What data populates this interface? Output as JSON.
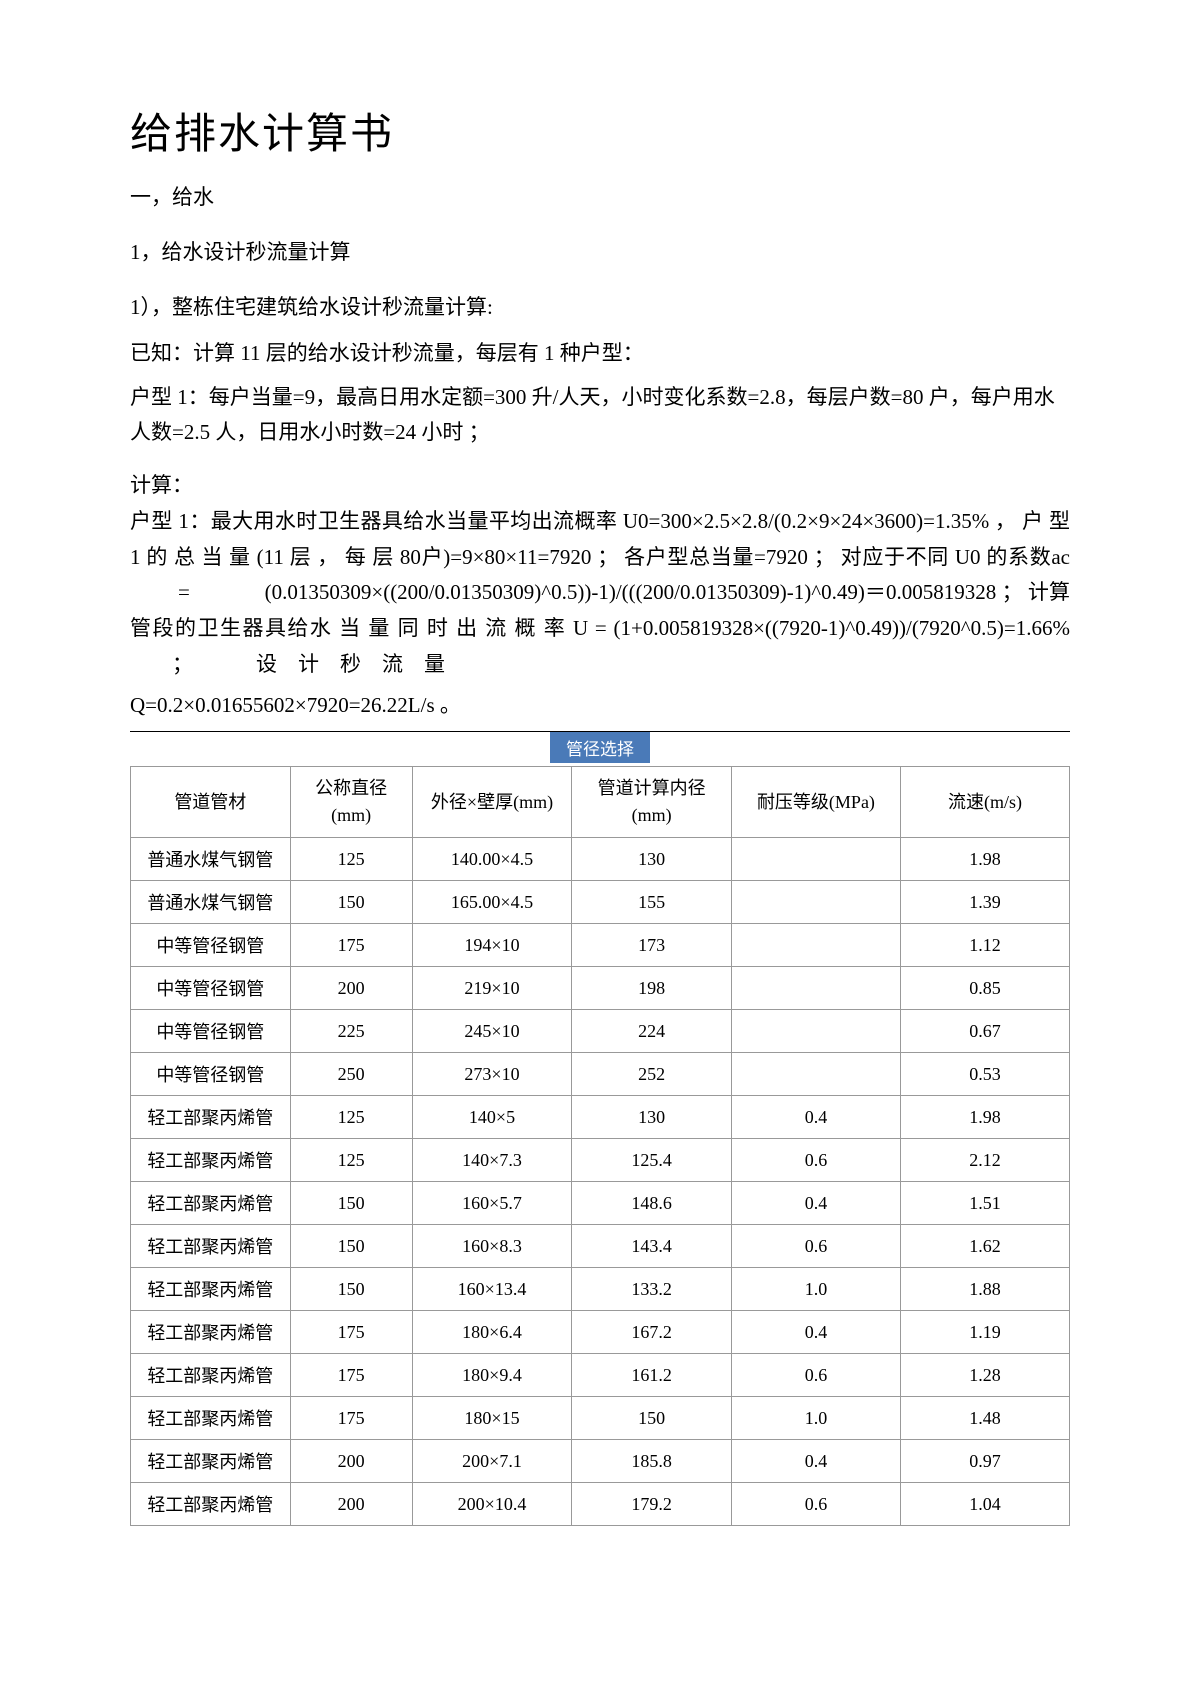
{
  "title": "给排水计算书",
  "section1": {
    "heading": "一，给水",
    "sub1": {
      "heading": "1，给水设计秒流量计算",
      "item1": {
        "heading": "1），整栋住宅建筑给水设计秒流量计算:",
        "known_line1": "已知：计算 11 层的给水设计秒流量，每层有 1 种户型：",
        "known_line2": "户型 1：每户当量=9，最高日用水定额=300 升/人天，小时变化系数=2.8，每层户数=80 户，每户用水人数=2.5 人，日用水小时数=24 小时 ；",
        "calc_label": "计算：",
        "calc_body": "户型 1：最大用水时卫生器具给水当量平均出流概率 U0=300×2.5×2.8/(0.2×9×24×3600)=1.35% ， 户 型 1 的 总 当 量 (11 层 ， 每 层 80户)=9×80×11=7920 ； 各户型总当量=7920 ； 对应于不同 U0 的系数ac          =              (0.01350309×((200/0.01350309)^0.5))-1)/(((200/0.01350309)-1)^0.49)＝0.005819328 ； 计算管段的卫生器具给水 当 量 同 时 出 流 概 率 U = (1+0.005819328×((7920-1)^0.49))/(7920^0.5)=1.66%         ；            设    计    秒    流    量",
        "calc_last": "Q=0.2×0.01655602×7920=26.22L/s 。"
      }
    }
  },
  "table": {
    "caption": "管径选择",
    "headers": {
      "material": "管道管材",
      "dn": "公称直径(mm)",
      "od": "外径×壁厚(mm)",
      "id": "管道计算内径(mm)",
      "pressure": "耐压等级(MPa)",
      "velocity": "流速(m/s)"
    },
    "rows": [
      {
        "material": "普通水煤气钢管",
        "dn": "125",
        "od": "140.00×4.5",
        "id": "130",
        "pressure": "",
        "velocity": "1.98"
      },
      {
        "material": "普通水煤气钢管",
        "dn": "150",
        "od": "165.00×4.5",
        "id": "155",
        "pressure": "",
        "velocity": "1.39"
      },
      {
        "material": "中等管径钢管",
        "dn": "175",
        "od": "194×10",
        "id": "173",
        "pressure": "",
        "velocity": "1.12"
      },
      {
        "material": "中等管径钢管",
        "dn": "200",
        "od": "219×10",
        "id": "198",
        "pressure": "",
        "velocity": "0.85"
      },
      {
        "material": "中等管径钢管",
        "dn": "225",
        "od": "245×10",
        "id": "224",
        "pressure": "",
        "velocity": "0.67"
      },
      {
        "material": "中等管径钢管",
        "dn": "250",
        "od": "273×10",
        "id": "252",
        "pressure": "",
        "velocity": "0.53"
      },
      {
        "material": "轻工部聚丙烯管",
        "dn": "125",
        "od": "140×5",
        "id": "130",
        "pressure": "0.4",
        "velocity": "1.98"
      },
      {
        "material": "轻工部聚丙烯管",
        "dn": "125",
        "od": "140×7.3",
        "id": "125.4",
        "pressure": "0.6",
        "velocity": "2.12"
      },
      {
        "material": "轻工部聚丙烯管",
        "dn": "150",
        "od": "160×5.7",
        "id": "148.6",
        "pressure": "0.4",
        "velocity": "1.51"
      },
      {
        "material": "轻工部聚丙烯管",
        "dn": "150",
        "od": "160×8.3",
        "id": "143.4",
        "pressure": "0.6",
        "velocity": "1.62"
      },
      {
        "material": "轻工部聚丙烯管",
        "dn": "150",
        "od": "160×13.4",
        "id": "133.2",
        "pressure": "1.0",
        "velocity": "1.88"
      },
      {
        "material": "轻工部聚丙烯管",
        "dn": "175",
        "od": "180×6.4",
        "id": "167.2",
        "pressure": "0.4",
        "velocity": "1.19"
      },
      {
        "material": "轻工部聚丙烯管",
        "dn": "175",
        "od": "180×9.4",
        "id": "161.2",
        "pressure": "0.6",
        "velocity": "1.28"
      },
      {
        "material": "轻工部聚丙烯管",
        "dn": "175",
        "od": "180×15",
        "id": "150",
        "pressure": "1.0",
        "velocity": "1.48"
      },
      {
        "material": "轻工部聚丙烯管",
        "dn": "200",
        "od": "200×7.1",
        "id": "185.8",
        "pressure": "0.4",
        "velocity": "0.97"
      },
      {
        "material": "轻工部聚丙烯管",
        "dn": "200",
        "od": "200×10.4",
        "id": "179.2",
        "pressure": "0.6",
        "velocity": "1.04"
      }
    ]
  },
  "styling": {
    "background_color": "#ffffff",
    "text_color": "#000000",
    "caption_bg": "#4a7ab8",
    "caption_fg": "#ffffff",
    "border_color": "#999999",
    "title_fontsize": 42,
    "body_fontsize": 21,
    "table_fontsize": 18
  }
}
